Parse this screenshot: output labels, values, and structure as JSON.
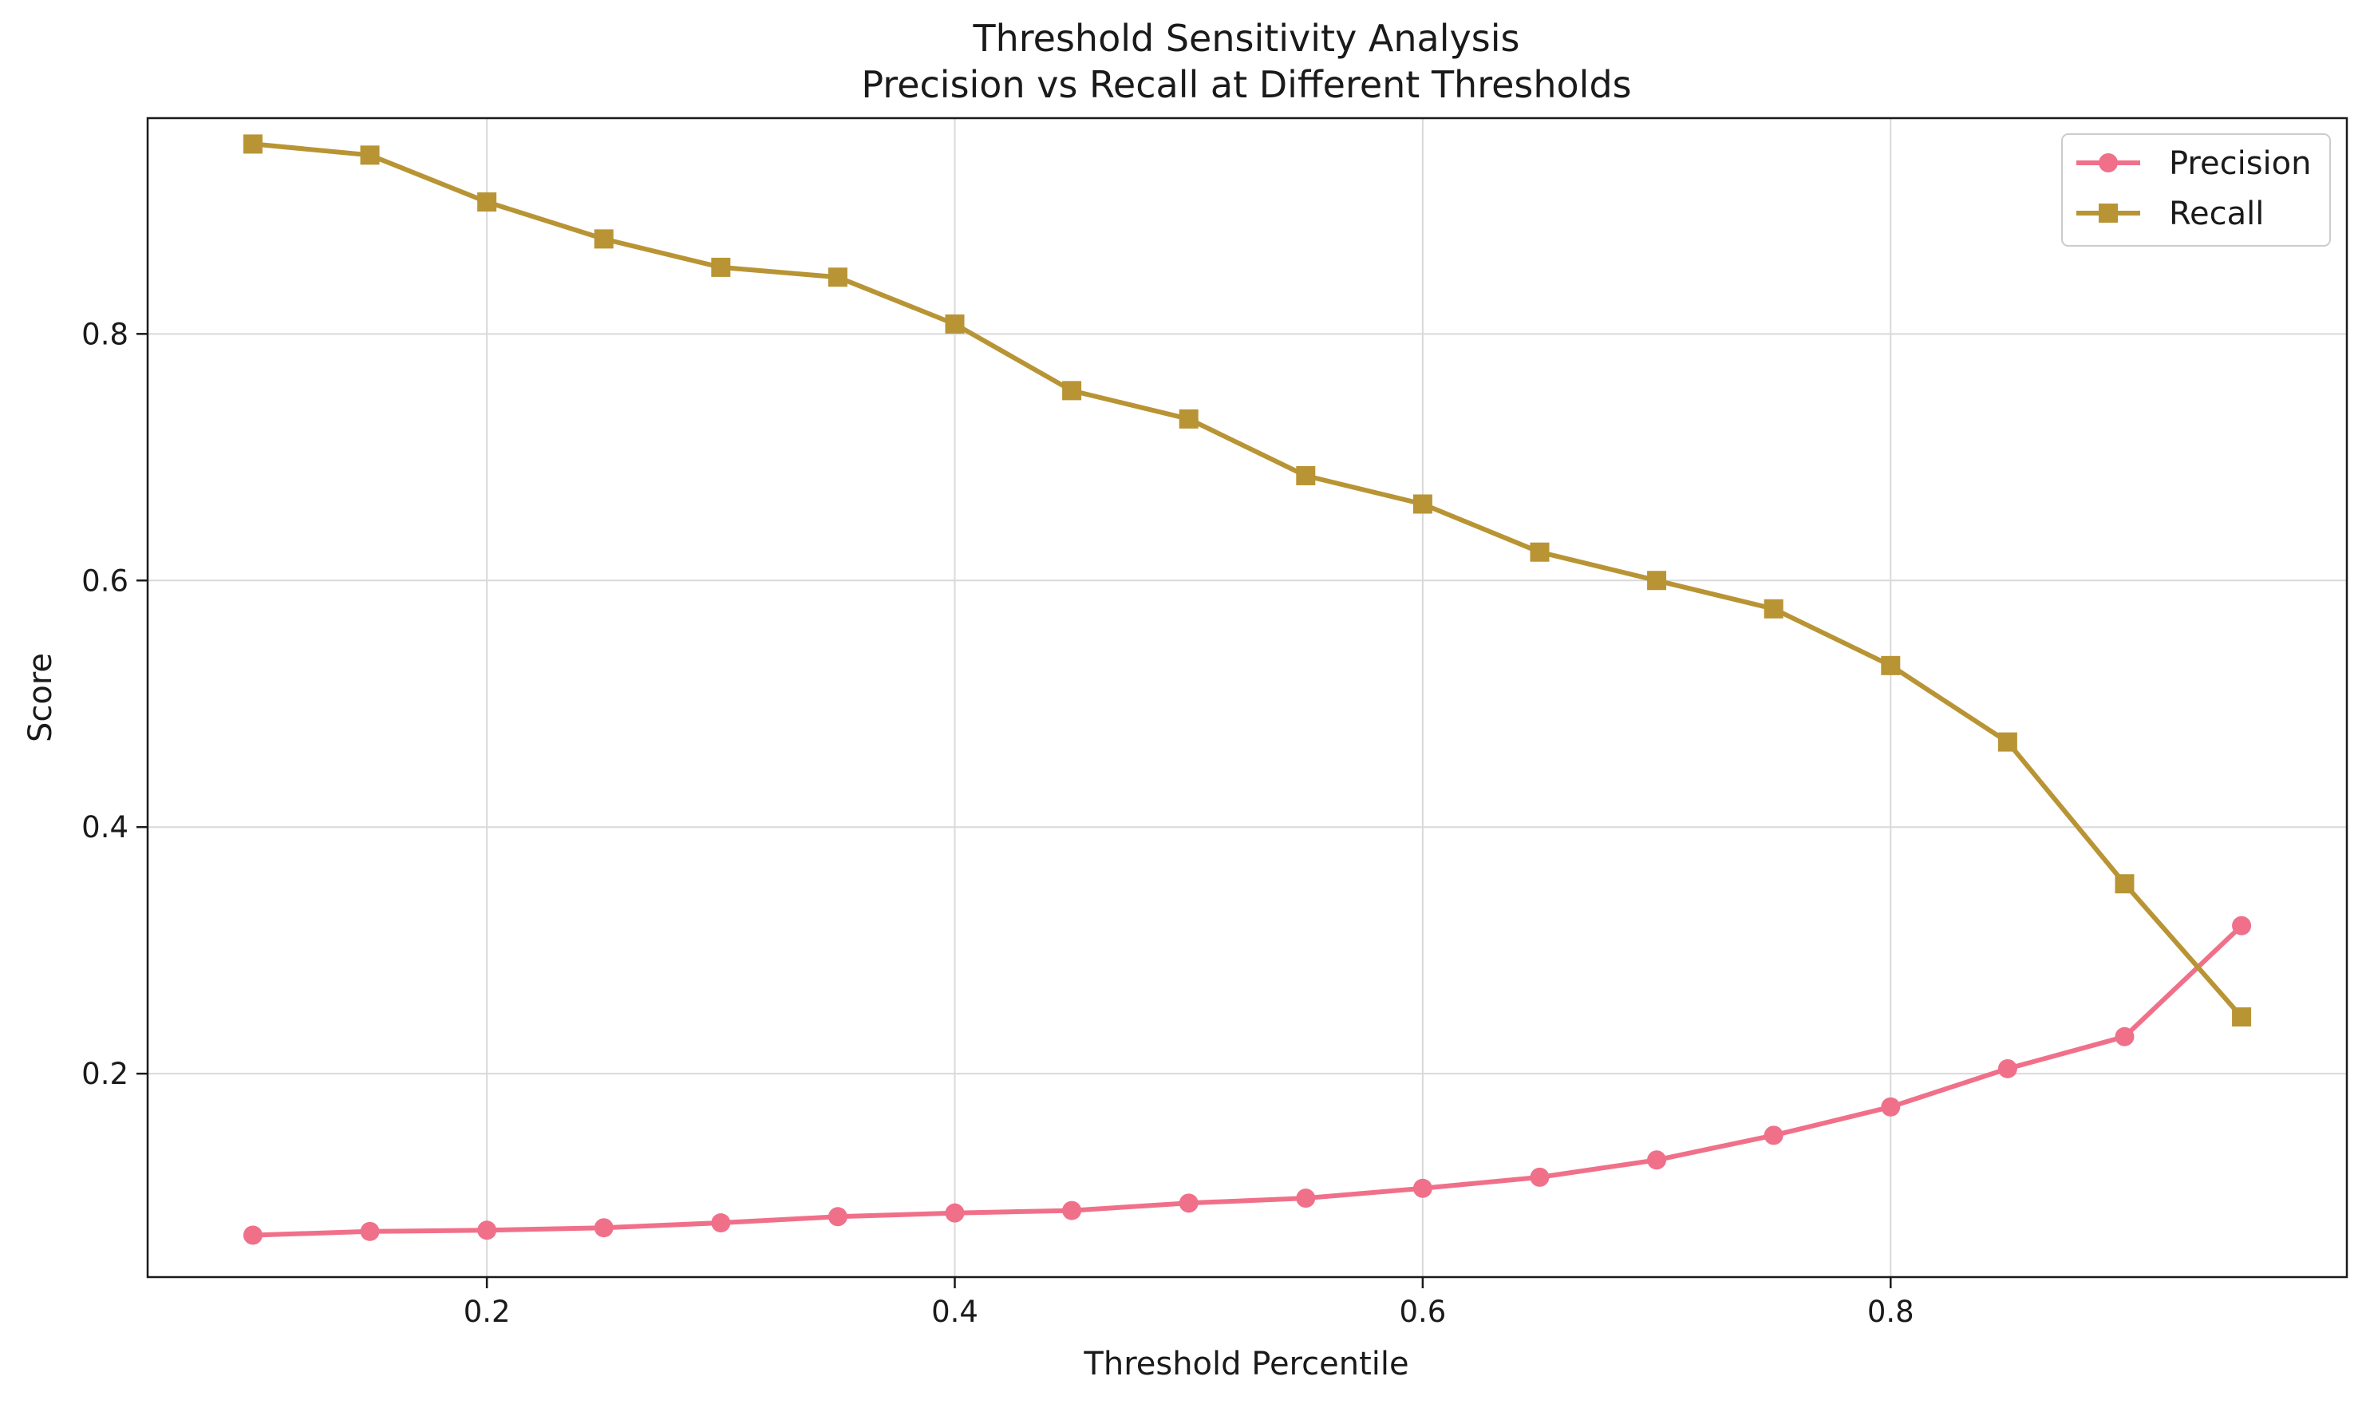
{
  "chart_data": {
    "type": "line",
    "title": "Threshold Sensitivity Analysis",
    "subtitle": "Precision vs Recall at Different Thresholds",
    "xlabel": "Threshold Percentile",
    "ylabel": "Score",
    "xlim": [
      0.055,
      0.995
    ],
    "ylim": [
      0.035,
      0.975
    ],
    "xticks": [
      "0.2",
      "0.4",
      "0.6",
      "0.8"
    ],
    "xtick_values": [
      0.2,
      0.4,
      0.6,
      0.8
    ],
    "yticks": [
      "0.2",
      "0.4",
      "0.6",
      "0.8"
    ],
    "ytick_values": [
      0.2,
      0.4,
      0.6,
      0.8
    ],
    "grid": true,
    "legend_position": "top-right",
    "x": [
      0.1,
      0.15,
      0.2,
      0.25,
      0.3,
      0.35,
      0.4,
      0.45,
      0.5,
      0.55,
      0.6,
      0.65,
      0.7,
      0.75,
      0.8,
      0.85,
      0.9,
      0.95
    ],
    "series": [
      {
        "name": "Precision",
        "color": "#f0708a",
        "marker": "circle",
        "values": [
          0.069,
          0.072,
          0.073,
          0.075,
          0.079,
          0.084,
          0.087,
          0.089,
          0.095,
          0.099,
          0.107,
          0.116,
          0.13,
          0.15,
          0.173,
          0.204,
          0.23,
          0.32
        ]
      },
      {
        "name": "Recall",
        "color": "#b89434",
        "marker": "square",
        "values": [
          0.954,
          0.945,
          0.907,
          0.877,
          0.854,
          0.846,
          0.808,
          0.754,
          0.731,
          0.685,
          0.662,
          0.623,
          0.6,
          0.577,
          0.531,
          0.469,
          0.354,
          0.246
        ]
      }
    ]
  }
}
